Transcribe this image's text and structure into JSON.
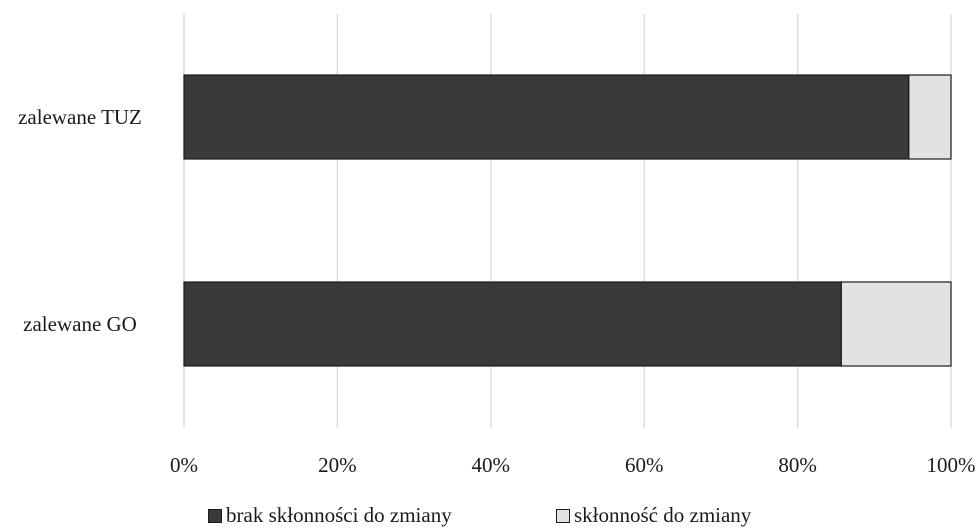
{
  "chart_data": {
    "type": "bar",
    "orientation": "horizontal",
    "stacked": true,
    "stack_mode": "percent",
    "categories": [
      "zalewane TUZ",
      "zalewane GO"
    ],
    "series": [
      {
        "name": "brak skłonności do zmiany",
        "values": [
          94.5,
          85.7
        ],
        "color": "#3a3a3a"
      },
      {
        "name": "skłonność do zmiany",
        "values": [
          5.5,
          14.3
        ],
        "color": "#e2e2e4"
      }
    ],
    "x_ticks": [
      "0%",
      "20%",
      "40%",
      "60%",
      "80%",
      "100%"
    ],
    "xlim": [
      0,
      100
    ],
    "grid": true,
    "legend_position": "bottom",
    "title": "",
    "xlabel": "",
    "ylabel": ""
  }
}
